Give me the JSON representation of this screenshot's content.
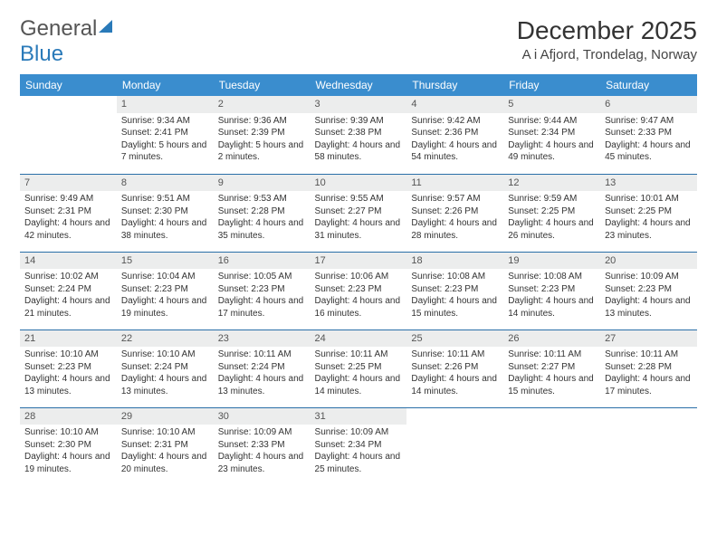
{
  "logo": {
    "text1": "General",
    "text2": "Blue"
  },
  "title": "December 2025",
  "location": "A i Afjord, Trondelag, Norway",
  "colors": {
    "header_bg": "#3a8dce",
    "header_text": "#ffffff",
    "daynum_bg": "#eceded",
    "row_divider": "#2a6fa8",
    "logo_blue": "#2a7ab9"
  },
  "day_labels": [
    "Sunday",
    "Monday",
    "Tuesday",
    "Wednesday",
    "Thursday",
    "Friday",
    "Saturday"
  ],
  "weeks": [
    [
      {
        "n": "",
        "sunrise": "",
        "sunset": "",
        "daylight": ""
      },
      {
        "n": "1",
        "sunrise": "9:34 AM",
        "sunset": "2:41 PM",
        "daylight": "5 hours and 7 minutes."
      },
      {
        "n": "2",
        "sunrise": "9:36 AM",
        "sunset": "2:39 PM",
        "daylight": "5 hours and 2 minutes."
      },
      {
        "n": "3",
        "sunrise": "9:39 AM",
        "sunset": "2:38 PM",
        "daylight": "4 hours and 58 minutes."
      },
      {
        "n": "4",
        "sunrise": "9:42 AM",
        "sunset": "2:36 PM",
        "daylight": "4 hours and 54 minutes."
      },
      {
        "n": "5",
        "sunrise": "9:44 AM",
        "sunset": "2:34 PM",
        "daylight": "4 hours and 49 minutes."
      },
      {
        "n": "6",
        "sunrise": "9:47 AM",
        "sunset": "2:33 PM",
        "daylight": "4 hours and 45 minutes."
      }
    ],
    [
      {
        "n": "7",
        "sunrise": "9:49 AM",
        "sunset": "2:31 PM",
        "daylight": "4 hours and 42 minutes."
      },
      {
        "n": "8",
        "sunrise": "9:51 AM",
        "sunset": "2:30 PM",
        "daylight": "4 hours and 38 minutes."
      },
      {
        "n": "9",
        "sunrise": "9:53 AM",
        "sunset": "2:28 PM",
        "daylight": "4 hours and 35 minutes."
      },
      {
        "n": "10",
        "sunrise": "9:55 AM",
        "sunset": "2:27 PM",
        "daylight": "4 hours and 31 minutes."
      },
      {
        "n": "11",
        "sunrise": "9:57 AM",
        "sunset": "2:26 PM",
        "daylight": "4 hours and 28 minutes."
      },
      {
        "n": "12",
        "sunrise": "9:59 AM",
        "sunset": "2:25 PM",
        "daylight": "4 hours and 26 minutes."
      },
      {
        "n": "13",
        "sunrise": "10:01 AM",
        "sunset": "2:25 PM",
        "daylight": "4 hours and 23 minutes."
      }
    ],
    [
      {
        "n": "14",
        "sunrise": "10:02 AM",
        "sunset": "2:24 PM",
        "daylight": "4 hours and 21 minutes."
      },
      {
        "n": "15",
        "sunrise": "10:04 AM",
        "sunset": "2:23 PM",
        "daylight": "4 hours and 19 minutes."
      },
      {
        "n": "16",
        "sunrise": "10:05 AM",
        "sunset": "2:23 PM",
        "daylight": "4 hours and 17 minutes."
      },
      {
        "n": "17",
        "sunrise": "10:06 AM",
        "sunset": "2:23 PM",
        "daylight": "4 hours and 16 minutes."
      },
      {
        "n": "18",
        "sunrise": "10:08 AM",
        "sunset": "2:23 PM",
        "daylight": "4 hours and 15 minutes."
      },
      {
        "n": "19",
        "sunrise": "10:08 AM",
        "sunset": "2:23 PM",
        "daylight": "4 hours and 14 minutes."
      },
      {
        "n": "20",
        "sunrise": "10:09 AM",
        "sunset": "2:23 PM",
        "daylight": "4 hours and 13 minutes."
      }
    ],
    [
      {
        "n": "21",
        "sunrise": "10:10 AM",
        "sunset": "2:23 PM",
        "daylight": "4 hours and 13 minutes."
      },
      {
        "n": "22",
        "sunrise": "10:10 AM",
        "sunset": "2:24 PM",
        "daylight": "4 hours and 13 minutes."
      },
      {
        "n": "23",
        "sunrise": "10:11 AM",
        "sunset": "2:24 PM",
        "daylight": "4 hours and 13 minutes."
      },
      {
        "n": "24",
        "sunrise": "10:11 AM",
        "sunset": "2:25 PM",
        "daylight": "4 hours and 14 minutes."
      },
      {
        "n": "25",
        "sunrise": "10:11 AM",
        "sunset": "2:26 PM",
        "daylight": "4 hours and 14 minutes."
      },
      {
        "n": "26",
        "sunrise": "10:11 AM",
        "sunset": "2:27 PM",
        "daylight": "4 hours and 15 minutes."
      },
      {
        "n": "27",
        "sunrise": "10:11 AM",
        "sunset": "2:28 PM",
        "daylight": "4 hours and 17 minutes."
      }
    ],
    [
      {
        "n": "28",
        "sunrise": "10:10 AM",
        "sunset": "2:30 PM",
        "daylight": "4 hours and 19 minutes."
      },
      {
        "n": "29",
        "sunrise": "10:10 AM",
        "sunset": "2:31 PM",
        "daylight": "4 hours and 20 minutes."
      },
      {
        "n": "30",
        "sunrise": "10:09 AM",
        "sunset": "2:33 PM",
        "daylight": "4 hours and 23 minutes."
      },
      {
        "n": "31",
        "sunrise": "10:09 AM",
        "sunset": "2:34 PM",
        "daylight": "4 hours and 25 minutes."
      },
      {
        "n": "",
        "sunrise": "",
        "sunset": "",
        "daylight": ""
      },
      {
        "n": "",
        "sunrise": "",
        "sunset": "",
        "daylight": ""
      },
      {
        "n": "",
        "sunrise": "",
        "sunset": "",
        "daylight": ""
      }
    ]
  ],
  "labels": {
    "sunrise": "Sunrise:",
    "sunset": "Sunset:",
    "daylight": "Daylight:"
  }
}
